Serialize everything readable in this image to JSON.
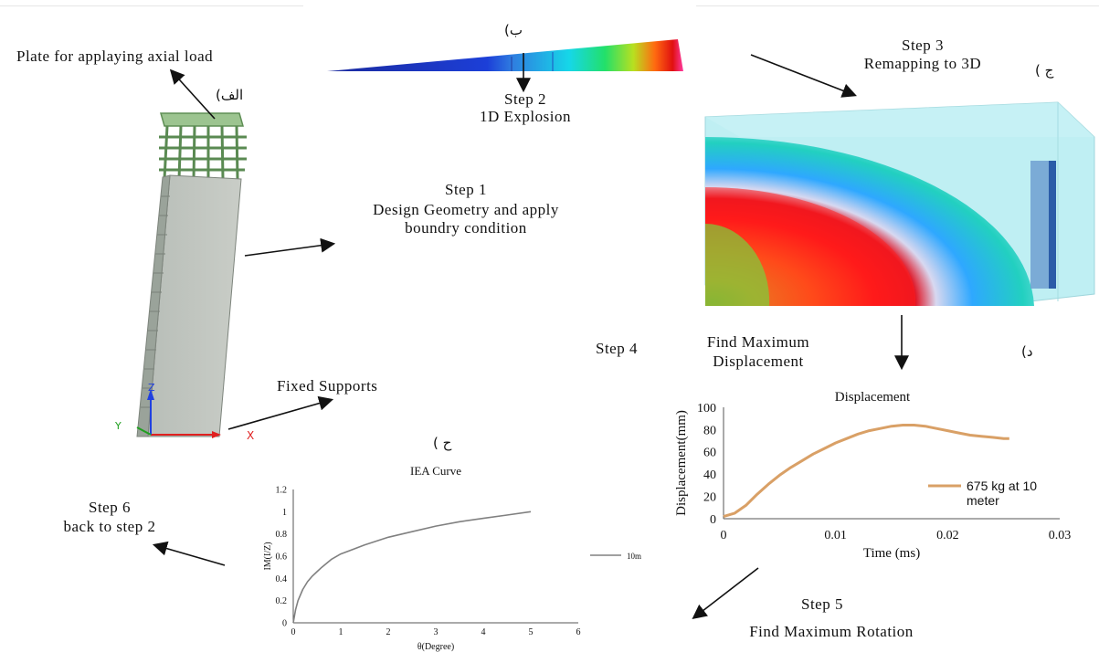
{
  "labels": {
    "plate": "Plate for applaying axial load",
    "mark_a": "(الف",
    "mark_b": "(ب",
    "mark_c": "( ج",
    "mark_d": "(د",
    "mark_e": "( ح",
    "step1_title": "Step 1",
    "step1_line2": "Design Geometry  and apply",
    "step1_line3": "boundry condition",
    "step2_title": "Step 2",
    "step2_line2": "1D Explosion",
    "step3_title": "Step 3",
    "step3_line2": "Remapping to 3D",
    "step4_title": "Step 4",
    "step4_line1": "Find  Maximum",
    "step4_line2": "Displacement",
    "step5_title": "Step 5",
    "step5_line2": "Find  Maximum  Rotation",
    "step6_title": "Step 6",
    "step6_line2": "back to step 2",
    "fixed_supports": "Fixed  Supports",
    "axis_z": "Z",
    "axis_y": "Y",
    "axis_x": "X"
  },
  "chart_data": [
    {
      "type": "line",
      "title": "Displacement",
      "xlabel": "Time (ms)",
      "ylabel": "Displacement(mm)",
      "xlim": [
        0,
        0.03
      ],
      "ylim": [
        0,
        100
      ],
      "x_ticks": [
        "0",
        "0.01",
        "0.02",
        "0.03"
      ],
      "y_ticks": [
        "0",
        "20",
        "40",
        "60",
        "80",
        "100"
      ],
      "legend_position": "right",
      "series": [
        {
          "name": "675 kg at 10 meter",
          "color": "#d9a066",
          "x": [
            0,
            0.001,
            0.002,
            0.003,
            0.004,
            0.005,
            0.006,
            0.007,
            0.008,
            0.009,
            0.01,
            0.011,
            0.012,
            0.013,
            0.014,
            0.015,
            0.016,
            0.017,
            0.018,
            0.019,
            0.02,
            0.021,
            0.022,
            0.023,
            0.024,
            0.025,
            0.0255
          ],
          "y": [
            2,
            5,
            12,
            22,
            31,
            39,
            46,
            52,
            58,
            63,
            68,
            72,
            76,
            79,
            81,
            83,
            84,
            84,
            83,
            81,
            79,
            77,
            75,
            74,
            73,
            72,
            72
          ]
        }
      ]
    },
    {
      "type": "line",
      "title": "IEA Curve",
      "xlabel": "θ(Degree)",
      "ylabel": "IM(I/Z)",
      "xlim": [
        0,
        6
      ],
      "ylim": [
        0,
        1.2
      ],
      "x_ticks": [
        "0",
        "1",
        "2",
        "3",
        "4",
        "5",
        "6"
      ],
      "y_ticks": [
        "0",
        "0.2",
        "0.4",
        "0.6",
        "0.8",
        "1",
        "1.2"
      ],
      "legend_position": "right",
      "series": [
        {
          "name": "10m",
          "color": "#808080",
          "x": [
            0,
            0.05,
            0.1,
            0.2,
            0.3,
            0.4,
            0.5,
            0.6,
            0.8,
            1.0,
            1.5,
            2,
            2.5,
            3,
            3.5,
            4,
            4.5,
            5
          ],
          "y": [
            0,
            0.12,
            0.2,
            0.3,
            0.37,
            0.42,
            0.46,
            0.5,
            0.57,
            0.62,
            0.7,
            0.77,
            0.82,
            0.87,
            0.91,
            0.94,
            0.97,
            1.0
          ]
        }
      ]
    }
  ]
}
